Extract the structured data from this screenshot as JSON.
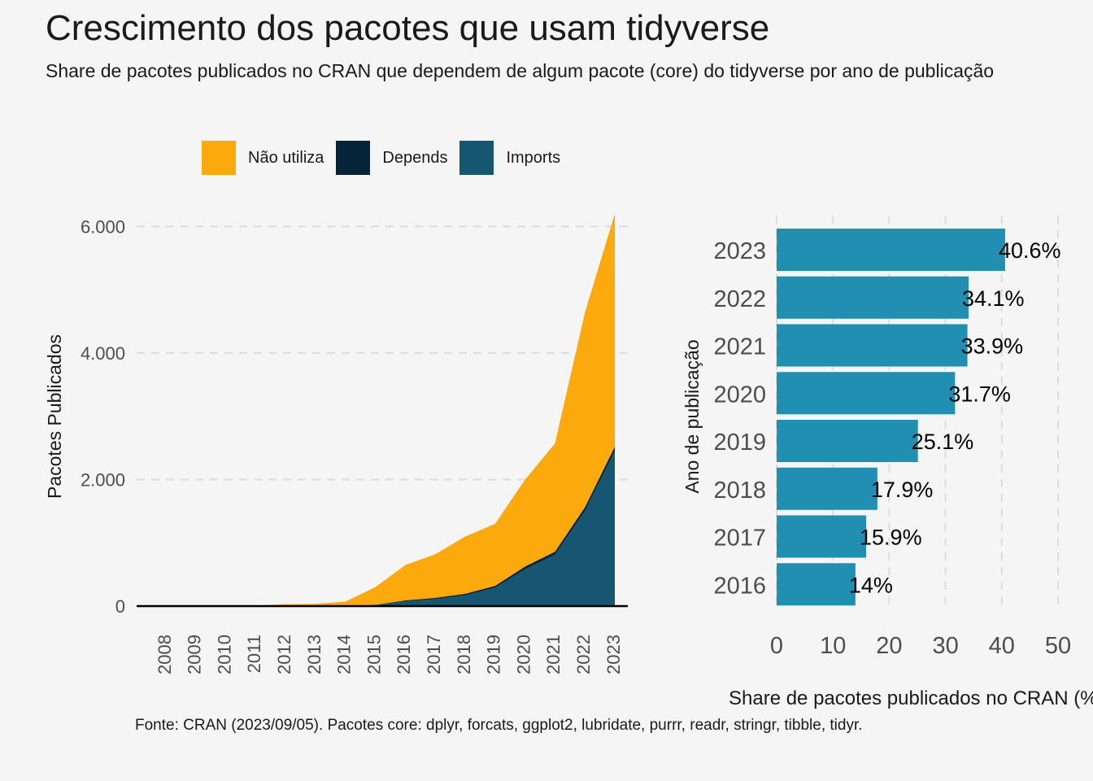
{
  "title": "Crescimento dos pacotes que usam tidyverse",
  "subtitle": "Share de pacotes publicados no CRAN que dependem de algum pacote (core) do tidyverse por ano de publicação",
  "caption": "Fonte: CRAN (2023/09/05). Pacotes core: dplyr, forcats, ggplot2, lubridate, purrr, readr, stringr, tibble, tidyr.",
  "legend": [
    {
      "label": "Não utiliza",
      "color": "#fca90e"
    },
    {
      "label": "Depends",
      "color": "#062439"
    },
    {
      "label": "Imports",
      "color": "#165670"
    }
  ],
  "chart_data": [
    {
      "type": "area",
      "stacked": true,
      "ylabel": "Pacotes Publicados",
      "xlabel": "",
      "x": [
        "2008",
        "2009",
        "2010",
        "2011",
        "2012",
        "2013",
        "2014",
        "2015",
        "2016",
        "2017",
        "2018",
        "2019",
        "2020",
        "2021",
        "2022",
        "2023"
      ],
      "ylim": [
        0,
        6300
      ],
      "yticks": [
        0,
        2000,
        4000,
        6000
      ],
      "ytick_labels": [
        "0",
        "2.000",
        "4.000",
        "6.000"
      ],
      "grid": "horizontal dashed",
      "legend_position": "top",
      "series": [
        {
          "name": "Imports",
          "color": "#165670",
          "values": [
            0,
            0,
            0,
            0,
            2,
            3,
            5,
            15,
            75,
            110,
            170,
            290,
            580,
            810,
            1500,
            2450
          ]
        },
        {
          "name": "Depends",
          "color": "#062439",
          "values": [
            0,
            0,
            0,
            0,
            1,
            1,
            2,
            5,
            15,
            20,
            25,
            30,
            45,
            50,
            60,
            70
          ]
        },
        {
          "name": "Não utiliza",
          "color": "#fca90e",
          "values": [
            2,
            3,
            4,
            5,
            27,
            31,
            63,
            280,
            560,
            690,
            905,
            980,
            1375,
            1710,
            3080,
            3680
          ]
        }
      ]
    },
    {
      "type": "bar",
      "orientation": "horizontal",
      "categories": [
        "2023",
        "2022",
        "2021",
        "2020",
        "2019",
        "2018",
        "2017",
        "2016"
      ],
      "values": [
        40.6,
        34.1,
        33.9,
        31.7,
        25.1,
        17.9,
        15.9,
        14
      ],
      "data_labels": [
        "40.6%",
        "34.1%",
        "33.9%",
        "31.7%",
        "25.1%",
        "17.9%",
        "15.9%",
        "14%"
      ],
      "color": "#218fb1",
      "xlabel": "Share de pacotes publicados no CRAN (%)",
      "ylabel": "Ano de publicação",
      "xlim": [
        0,
        50
      ],
      "xticks": [
        0,
        10,
        20,
        30,
        40,
        50
      ],
      "grid": "vertical dashed"
    }
  ]
}
